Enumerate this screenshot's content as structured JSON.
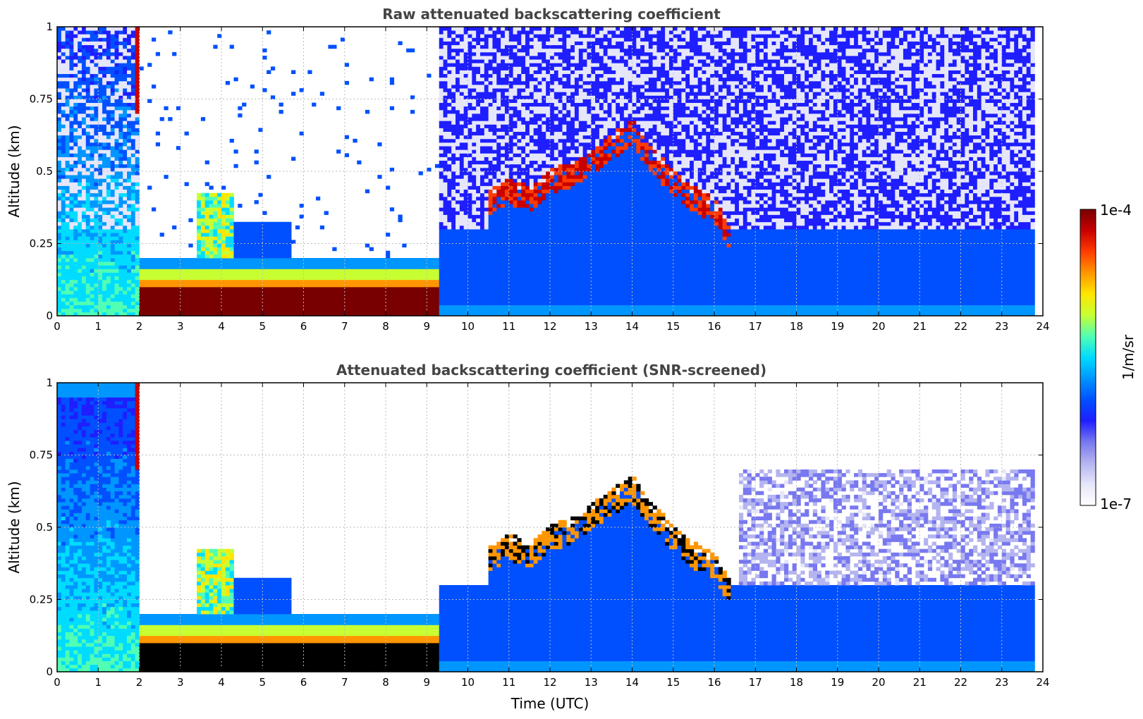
{
  "colors": {
    "colormap": [
      "#ffffff",
      "#e6e6fa",
      "#b4b4f0",
      "#7878f0",
      "#1e1eff",
      "#0050ff",
      "#0096ff",
      "#00dcff",
      "#50ffb4",
      "#c8ff32",
      "#ffe600",
      "#ff9600",
      "#ff3c00",
      "#c80000",
      "#780000"
    ],
    "saturated_screened": "#000000"
  },
  "chart_data": [
    {
      "type": "heatmap",
      "title": "Raw attenuated backscattering coefficient",
      "xlabel": "",
      "ylabel": "Altitude (km)",
      "xlim": [
        0,
        24
      ],
      "ylim": [
        0,
        1
      ],
      "xticks": [
        "0",
        "1",
        "2",
        "3",
        "4",
        "5",
        "6",
        "7",
        "8",
        "9",
        "10",
        "11",
        "12",
        "13",
        "14",
        "15",
        "16",
        "17",
        "18",
        "19",
        "20",
        "21",
        "22",
        "23",
        "24"
      ],
      "yticks": [
        "0",
        "0.25",
        "0.5",
        "0.75",
        "1"
      ],
      "grid": true,
      "data_end_time": 23.8,
      "features": {
        "fog_layer": {
          "start": 2.05,
          "end": 9.3,
          "top_km": 0.2,
          "dense_top_km": 0.1
        },
        "aerosol_plume": {
          "start": 3.4,
          "end": 4.3,
          "top_km": 0.42
        },
        "cloud_base_km": [
          [
            10.5,
            0.4
          ],
          [
            11.0,
            0.45
          ],
          [
            11.5,
            0.42
          ],
          [
            12.0,
            0.48
          ],
          [
            12.5,
            0.5
          ],
          [
            13.0,
            0.55
          ],
          [
            13.5,
            0.6
          ],
          [
            14.0,
            0.65
          ],
          [
            14.5,
            0.55
          ],
          [
            15.0,
            0.48
          ],
          [
            15.5,
            0.42
          ],
          [
            16.0,
            0.38
          ],
          [
            16.4,
            0.28
          ]
        ]
      }
    },
    {
      "type": "heatmap",
      "title": "Attenuated backscattering coefficient (SNR-screened)",
      "xlabel": "Time (UTC)",
      "ylabel": "Altitude (km)",
      "xlim": [
        0,
        24
      ],
      "ylim": [
        0,
        1
      ],
      "xticks": [
        "0",
        "1",
        "2",
        "3",
        "4",
        "5",
        "6",
        "7",
        "8",
        "9",
        "10",
        "11",
        "12",
        "13",
        "14",
        "15",
        "16",
        "17",
        "18",
        "19",
        "20",
        "21",
        "22",
        "23",
        "24"
      ],
      "yticks": [
        "0",
        "0.25",
        "0.5",
        "0.75",
        "1"
      ],
      "grid": true,
      "data_end_time": 23.8
    }
  ],
  "colorbar": {
    "label": "1/m/sr",
    "max_label": "1e-4",
    "min_label": "1e-7",
    "scale": "log"
  }
}
